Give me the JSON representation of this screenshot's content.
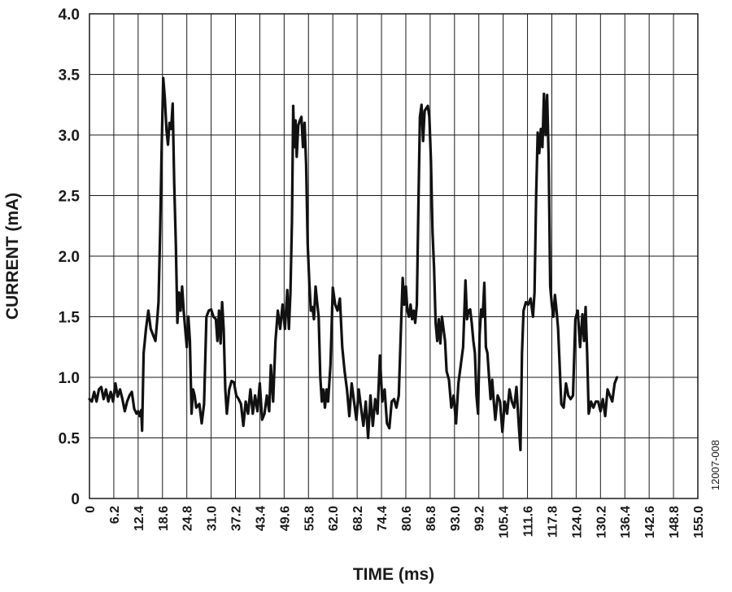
{
  "figure_id": "12007-008",
  "chart_data": {
    "type": "line",
    "xlabel": "TIME (ms)",
    "ylabel": "CURRENT (mA)",
    "xlim": [
      0,
      155.0
    ],
    "ylim": [
      0,
      4.0
    ],
    "grid": true,
    "x_ticks": [
      "0",
      "6.2",
      "12.4",
      "18.6",
      "24.8",
      "31.0",
      "37.2",
      "43.4",
      "49.6",
      "55.8",
      "62.0",
      "68.2",
      "74.4",
      "80.6",
      "86.8",
      "93.0",
      "99.2",
      "105.4",
      "111.6",
      "117.8",
      "124.0",
      "130.2",
      "136.4",
      "142.6",
      "148.8",
      "155.0"
    ],
    "y_ticks": [
      "0",
      "0.5",
      "1.0",
      "1.5",
      "2.0",
      "2.5",
      "3.0",
      "3.5",
      "4.0"
    ],
    "series": [
      {
        "color": "#111111",
        "points": [
          [
            0,
            0.82
          ],
          [
            0.6,
            0.8
          ],
          [
            1.2,
            0.88
          ],
          [
            1.8,
            0.8
          ],
          [
            2.4,
            0.9
          ],
          [
            3.0,
            0.92
          ],
          [
            3.6,
            0.82
          ],
          [
            4.2,
            0.9
          ],
          [
            4.8,
            0.8
          ],
          [
            5.4,
            0.88
          ],
          [
            6.0,
            0.8
          ],
          [
            6.6,
            0.95
          ],
          [
            7.2,
            0.84
          ],
          [
            7.8,
            0.9
          ],
          [
            8.4,
            0.82
          ],
          [
            9.0,
            0.72
          ],
          [
            9.6,
            0.8
          ],
          [
            10.2,
            0.85
          ],
          [
            10.8,
            0.88
          ],
          [
            11.4,
            0.74
          ],
          [
            12.0,
            0.7
          ],
          [
            12.4,
            0.72
          ],
          [
            12.8,
            0.68
          ],
          [
            13.2,
            0.73
          ],
          [
            13.4,
            0.56
          ],
          [
            13.8,
            1.2
          ],
          [
            14.4,
            1.4
          ],
          [
            15.0,
            1.55
          ],
          [
            15.6,
            1.4
          ],
          [
            16.2,
            1.35
          ],
          [
            16.8,
            1.3
          ],
          [
            17.2,
            1.45
          ],
          [
            17.6,
            1.62
          ],
          [
            18.0,
            2.2
          ],
          [
            18.4,
            2.9
          ],
          [
            18.8,
            3.47
          ],
          [
            19.2,
            3.3
          ],
          [
            19.6,
            3.05
          ],
          [
            20.0,
            2.92
          ],
          [
            20.4,
            3.1
          ],
          [
            20.8,
            3.05
          ],
          [
            21.2,
            3.26
          ],
          [
            21.6,
            2.6
          ],
          [
            22.0,
            2.1
          ],
          [
            22.4,
            1.45
          ],
          [
            22.8,
            1.7
          ],
          [
            23.2,
            1.55
          ],
          [
            23.6,
            1.75
          ],
          [
            24.0,
            1.55
          ],
          [
            24.4,
            1.4
          ],
          [
            24.8,
            1.25
          ],
          [
            25.2,
            1.5
          ],
          [
            25.6,
            1.3
          ],
          [
            26.0,
            0.7
          ],
          [
            26.4,
            0.9
          ],
          [
            26.8,
            0.85
          ],
          [
            27.2,
            0.75
          ],
          [
            28.0,
            0.78
          ],
          [
            28.6,
            0.62
          ],
          [
            29.2,
            0.78
          ],
          [
            29.8,
            1.5
          ],
          [
            30.4,
            1.55
          ],
          [
            31.0,
            1.56
          ],
          [
            31.6,
            1.5
          ],
          [
            32.2,
            1.48
          ],
          [
            32.6,
            1.3
          ],
          [
            33.0,
            1.55
          ],
          [
            33.4,
            1.28
          ],
          [
            33.8,
            1.62
          ],
          [
            34.2,
            1.4
          ],
          [
            34.6,
            0.9
          ],
          [
            35.0,
            0.7
          ],
          [
            35.6,
            0.9
          ],
          [
            36.2,
            0.97
          ],
          [
            36.8,
            0.96
          ],
          [
            37.4,
            0.85
          ],
          [
            38.0,
            0.82
          ],
          [
            38.6,
            0.78
          ],
          [
            39.2,
            0.6
          ],
          [
            39.8,
            0.8
          ],
          [
            40.4,
            0.7
          ],
          [
            41.0,
            0.9
          ],
          [
            41.6,
            0.7
          ],
          [
            42.2,
            0.85
          ],
          [
            42.8,
            0.72
          ],
          [
            43.4,
            0.95
          ],
          [
            44.0,
            0.65
          ],
          [
            44.6,
            0.7
          ],
          [
            45.2,
            0.85
          ],
          [
            45.8,
            0.72
          ],
          [
            46.2,
            1.1
          ],
          [
            46.8,
            0.8
          ],
          [
            47.4,
            1.3
          ],
          [
            48.0,
            1.55
          ],
          [
            48.6,
            1.4
          ],
          [
            49.2,
            1.6
          ],
          [
            49.8,
            1.4
          ],
          [
            50.4,
            1.72
          ],
          [
            50.8,
            1.4
          ],
          [
            51.2,
            1.7
          ],
          [
            51.6,
            2.3
          ],
          [
            51.9,
            3.24
          ],
          [
            52.2,
            2.9
          ],
          [
            52.5,
            3.12
          ],
          [
            52.8,
            2.82
          ],
          [
            53.2,
            3.08
          ],
          [
            53.6,
            3.12
          ],
          [
            54.0,
            3.15
          ],
          [
            54.4,
            2.9
          ],
          [
            54.8,
            3.1
          ],
          [
            55.2,
            2.75
          ],
          [
            55.6,
            2.1
          ],
          [
            56.0,
            1.8
          ],
          [
            56.4,
            1.55
          ],
          [
            56.8,
            1.58
          ],
          [
            57.2,
            1.48
          ],
          [
            57.6,
            1.75
          ],
          [
            58.0,
            1.62
          ],
          [
            58.4,
            1.5
          ],
          [
            58.8,
            1.0
          ],
          [
            59.2,
            0.8
          ],
          [
            59.6,
            0.9
          ],
          [
            60.0,
            0.75
          ],
          [
            60.4,
            0.9
          ],
          [
            60.8,
            0.8
          ],
          [
            61.4,
            1.1
          ],
          [
            62.0,
            1.74
          ],
          [
            62.6,
            1.6
          ],
          [
            63.2,
            1.55
          ],
          [
            63.8,
            1.65
          ],
          [
            64.4,
            1.25
          ],
          [
            65.0,
            1.05
          ],
          [
            65.6,
            0.9
          ],
          [
            66.2,
            0.68
          ],
          [
            66.8,
            0.95
          ],
          [
            67.4,
            0.8
          ],
          [
            68.0,
            0.65
          ],
          [
            68.6,
            0.9
          ],
          [
            69.2,
            0.75
          ],
          [
            69.8,
            0.6
          ],
          [
            70.4,
            0.8
          ],
          [
            71.0,
            0.5
          ],
          [
            71.6,
            0.85
          ],
          [
            72.2,
            0.6
          ],
          [
            72.8,
            0.82
          ],
          [
            73.4,
            0.7
          ],
          [
            74.0,
            1.18
          ],
          [
            74.6,
            0.8
          ],
          [
            75.2,
            0.9
          ],
          [
            75.8,
            0.62
          ],
          [
            76.4,
            0.58
          ],
          [
            77.0,
            0.8
          ],
          [
            77.6,
            0.82
          ],
          [
            78.2,
            0.75
          ],
          [
            78.8,
            0.85
          ],
          [
            79.4,
            1.45
          ],
          [
            79.8,
            1.82
          ],
          [
            80.2,
            1.6
          ],
          [
            80.6,
            1.75
          ],
          [
            81.0,
            1.55
          ],
          [
            81.4,
            1.5
          ],
          [
            81.8,
            1.6
          ],
          [
            82.2,
            1.48
          ],
          [
            82.6,
            1.55
          ],
          [
            83.0,
            1.45
          ],
          [
            83.4,
            1.6
          ],
          [
            83.8,
            2.4
          ],
          [
            84.2,
            3.15
          ],
          [
            84.6,
            3.25
          ],
          [
            85.0,
            2.95
          ],
          [
            85.4,
            3.2
          ],
          [
            85.8,
            3.22
          ],
          [
            86.2,
            3.24
          ],
          [
            86.6,
            3.15
          ],
          [
            87.0,
            2.8
          ],
          [
            87.4,
            2.2
          ],
          [
            87.8,
            1.9
          ],
          [
            88.2,
            1.45
          ],
          [
            88.6,
            1.3
          ],
          [
            89.0,
            1.48
          ],
          [
            89.4,
            1.28
          ],
          [
            89.8,
            1.5
          ],
          [
            90.2,
            1.4
          ],
          [
            90.6,
            1.3
          ],
          [
            91.0,
            1.05
          ],
          [
            91.6,
            0.98
          ],
          [
            92.2,
            0.75
          ],
          [
            92.8,
            0.85
          ],
          [
            93.4,
            0.62
          ],
          [
            94.0,
            0.95
          ],
          [
            94.6,
            1.1
          ],
          [
            95.2,
            1.25
          ],
          [
            95.8,
            1.8
          ],
          [
            96.2,
            1.48
          ],
          [
            96.6,
            1.55
          ],
          [
            97.0,
            1.56
          ],
          [
            97.4,
            1.45
          ],
          [
            97.8,
            1.3
          ],
          [
            98.2,
            1.2
          ],
          [
            98.6,
            0.85
          ],
          [
            99.0,
            0.7
          ],
          [
            99.4,
            1.35
          ],
          [
            99.8,
            1.56
          ],
          [
            100.2,
            1.5
          ],
          [
            100.6,
            1.78
          ],
          [
            101.0,
            1.25
          ],
          [
            101.4,
            1.2
          ],
          [
            101.8,
            1.0
          ],
          [
            102.2,
            0.82
          ],
          [
            102.6,
            0.98
          ],
          [
            103.0,
            0.8
          ],
          [
            103.4,
            0.65
          ],
          [
            104.0,
            0.85
          ],
          [
            104.6,
            0.8
          ],
          [
            105.2,
            0.55
          ],
          [
            105.8,
            0.8
          ],
          [
            106.4,
            0.7
          ],
          [
            107.0,
            0.9
          ],
          [
            107.6,
            0.8
          ],
          [
            108.2,
            0.75
          ],
          [
            108.8,
            0.92
          ],
          [
            109.4,
            0.6
          ],
          [
            109.8,
            0.4
          ],
          [
            110.2,
            1.2
          ],
          [
            110.6,
            1.55
          ],
          [
            111.2,
            1.62
          ],
          [
            111.8,
            1.6
          ],
          [
            112.4,
            1.65
          ],
          [
            113.0,
            1.5
          ],
          [
            113.4,
            1.7
          ],
          [
            113.8,
            2.5
          ],
          [
            114.2,
            3.02
          ],
          [
            114.6,
            2.85
          ],
          [
            115.0,
            3.05
          ],
          [
            115.4,
            2.9
          ],
          [
            115.8,
            3.34
          ],
          [
            116.2,
            3.0
          ],
          [
            116.6,
            3.33
          ],
          [
            117.0,
            2.8
          ],
          [
            117.4,
            1.75
          ],
          [
            117.8,
            1.6
          ],
          [
            118.2,
            1.5
          ],
          [
            118.6,
            1.68
          ],
          [
            119.0,
            1.55
          ],
          [
            119.4,
            1.4
          ],
          [
            119.8,
            1.1
          ],
          [
            120.2,
            0.78
          ],
          [
            120.8,
            0.75
          ],
          [
            121.4,
            0.95
          ],
          [
            122.0,
            0.85
          ],
          [
            122.6,
            0.82
          ],
          [
            123.2,
            0.85
          ],
          [
            123.8,
            1.48
          ],
          [
            124.4,
            1.55
          ],
          [
            125.0,
            1.25
          ],
          [
            125.6,
            1.52
          ],
          [
            126.0,
            1.3
          ],
          [
            126.4,
            1.58
          ],
          [
            126.8,
            1.2
          ],
          [
            127.2,
            0.7
          ],
          [
            127.8,
            0.8
          ],
          [
            128.4,
            0.75
          ],
          [
            129.0,
            0.8
          ],
          [
            129.6,
            0.8
          ],
          [
            130.2,
            0.72
          ],
          [
            130.8,
            0.82
          ],
          [
            131.4,
            0.68
          ],
          [
            132.0,
            0.9
          ],
          [
            132.6,
            0.85
          ],
          [
            133.2,
            0.8
          ],
          [
            133.8,
            0.95
          ],
          [
            134.4,
            1.0
          ]
        ]
      }
    ]
  }
}
